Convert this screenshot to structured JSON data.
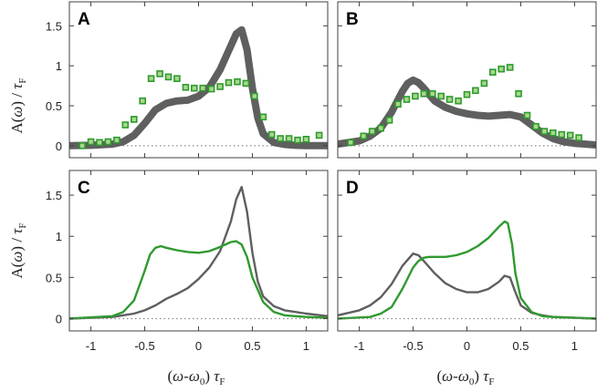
{
  "figure": {
    "ylabel": {
      "main": "A(",
      "omega": "ω",
      "close": ") / ",
      "tau": "τ",
      "sub": "F"
    },
    "xlabel": {
      "open": "(",
      "w1": "ω",
      "dash": "-",
      "w0": "ω",
      "sub0": "0",
      "close": ") ",
      "tau": "τ",
      "subF": "F"
    },
    "colors": {
      "gray": "#5f5f5f",
      "green": "#2f9a2f",
      "marker_fill": "#a6d98a",
      "frame": "#404040",
      "zero_line": "#8a8a8a"
    }
  },
  "chart_data": [
    {
      "panel": "A",
      "type": "line",
      "xlim": [
        -1.2,
        1.2
      ],
      "ylim": [
        -0.15,
        1.8
      ],
      "yticks": [
        "0",
        "0.5",
        "1",
        "1.5"
      ],
      "xticks": [],
      "series": [
        {
          "name": "theory band",
          "style": "band",
          "color": "gray",
          "x": [
            -1.2,
            -1.0,
            -0.8,
            -0.7,
            -0.6,
            -0.5,
            -0.4,
            -0.3,
            -0.2,
            -0.1,
            0.0,
            0.1,
            0.2,
            0.3,
            0.35,
            0.4,
            0.45,
            0.5,
            0.55,
            0.6,
            0.7,
            0.8,
            0.9,
            1.0,
            1.2
          ],
          "y": [
            0.0,
            0.005,
            0.02,
            0.05,
            0.13,
            0.28,
            0.45,
            0.53,
            0.56,
            0.57,
            0.62,
            0.73,
            0.95,
            1.25,
            1.4,
            1.45,
            1.2,
            0.72,
            0.35,
            0.15,
            0.04,
            0.015,
            0.005,
            0.0,
            0.0
          ]
        },
        {
          "name": "experiment",
          "style": "markers",
          "color": "green",
          "x": [
            -1.08,
            -1.0,
            -0.92,
            -0.84,
            -0.76,
            -0.68,
            -0.6,
            -0.52,
            -0.44,
            -0.36,
            -0.28,
            -0.2,
            -0.12,
            -0.04,
            0.04,
            0.12,
            0.2,
            0.28,
            0.36,
            0.44,
            0.52,
            0.6,
            0.68,
            0.76,
            0.84,
            0.92,
            1.0,
            1.12
          ],
          "y": [
            0.0,
            0.05,
            0.04,
            0.05,
            0.07,
            0.26,
            0.33,
            0.56,
            0.84,
            0.9,
            0.86,
            0.84,
            0.73,
            0.72,
            0.72,
            0.71,
            0.74,
            0.79,
            0.8,
            0.78,
            0.62,
            0.36,
            0.14,
            0.09,
            0.09,
            0.07,
            0.08,
            0.13
          ]
        }
      ]
    },
    {
      "panel": "B",
      "type": "line",
      "xlim": [
        -1.2,
        1.2
      ],
      "ylim": [
        -0.15,
        1.8
      ],
      "yticks": [],
      "xticks": [],
      "series": [
        {
          "name": "theory band",
          "style": "band",
          "color": "gray",
          "x": [
            -1.2,
            -1.0,
            -0.9,
            -0.8,
            -0.7,
            -0.6,
            -0.55,
            -0.5,
            -0.45,
            -0.4,
            -0.35,
            -0.3,
            -0.2,
            -0.1,
            0.0,
            0.1,
            0.2,
            0.3,
            0.4,
            0.5,
            0.6,
            0.7,
            0.8,
            0.9,
            1.0,
            1.2
          ],
          "y": [
            0.02,
            0.06,
            0.12,
            0.22,
            0.42,
            0.68,
            0.78,
            0.82,
            0.79,
            0.72,
            0.64,
            0.56,
            0.48,
            0.43,
            0.4,
            0.38,
            0.37,
            0.38,
            0.39,
            0.36,
            0.26,
            0.16,
            0.09,
            0.05,
            0.03,
            0.01
          ]
        },
        {
          "name": "experiment",
          "style": "markers",
          "color": "green",
          "x": [
            -1.08,
            -0.96,
            -0.88,
            -0.8,
            -0.72,
            -0.64,
            -0.56,
            -0.48,
            -0.4,
            -0.32,
            -0.24,
            -0.16,
            -0.08,
            0.0,
            0.08,
            0.16,
            0.24,
            0.32,
            0.4,
            0.48,
            0.56,
            0.64,
            0.72,
            0.8,
            0.88,
            0.96,
            1.04
          ],
          "y": [
            0.04,
            0.12,
            0.18,
            0.22,
            0.32,
            0.52,
            0.58,
            0.62,
            0.65,
            0.65,
            0.62,
            0.58,
            0.56,
            0.64,
            0.69,
            0.78,
            0.92,
            0.96,
            0.98,
            0.65,
            0.38,
            0.24,
            0.18,
            0.16,
            0.14,
            0.13,
            0.1
          ]
        }
      ]
    },
    {
      "panel": "C",
      "type": "line",
      "xlim": [
        -1.2,
        1.2
      ],
      "ylim": [
        -0.15,
        1.8
      ],
      "yticks": [
        "0",
        "0.5",
        "1",
        "1.5"
      ],
      "xticks": [
        "-1",
        "-0.5",
        "0",
        "0.5",
        "1"
      ],
      "series": [
        {
          "name": "gray curve",
          "style": "line",
          "color": "gray",
          "x": [
            -1.2,
            -0.8,
            -0.6,
            -0.5,
            -0.4,
            -0.3,
            -0.2,
            -0.1,
            0.0,
            0.1,
            0.2,
            0.3,
            0.35,
            0.4,
            0.45,
            0.5,
            0.55,
            0.6,
            0.7,
            0.8,
            0.9,
            1.0,
            1.2
          ],
          "y": [
            0.0,
            0.02,
            0.06,
            0.1,
            0.16,
            0.24,
            0.3,
            0.37,
            0.48,
            0.62,
            0.82,
            1.18,
            1.45,
            1.6,
            1.3,
            0.8,
            0.45,
            0.27,
            0.15,
            0.1,
            0.08,
            0.06,
            0.03
          ]
        },
        {
          "name": "green curve",
          "style": "line",
          "color": "green",
          "x": [
            -1.2,
            -0.8,
            -0.7,
            -0.6,
            -0.5,
            -0.45,
            -0.4,
            -0.35,
            -0.3,
            -0.2,
            -0.1,
            0.0,
            0.1,
            0.2,
            0.3,
            0.35,
            0.4,
            0.45,
            0.5,
            0.6,
            0.7,
            0.8,
            1.0,
            1.2
          ],
          "y": [
            0.0,
            0.03,
            0.08,
            0.22,
            0.58,
            0.78,
            0.86,
            0.88,
            0.86,
            0.83,
            0.81,
            0.8,
            0.82,
            0.87,
            0.93,
            0.94,
            0.9,
            0.75,
            0.5,
            0.2,
            0.08,
            0.04,
            0.02,
            0.01
          ]
        },
        {
          "name": "zero line",
          "style": "dotted",
          "color": "zero_line",
          "x": [
            -1.2,
            1.2
          ],
          "y": [
            0,
            0
          ]
        }
      ]
    },
    {
      "panel": "D",
      "type": "line",
      "xlim": [
        -1.2,
        1.2
      ],
      "ylim": [
        -0.15,
        1.8
      ],
      "yticks": [],
      "xticks": [
        "-1",
        "-0.5",
        "0",
        "0.5",
        "1"
      ],
      "series": [
        {
          "name": "gray curve",
          "style": "line",
          "color": "gray",
          "x": [
            -1.2,
            -1.0,
            -0.9,
            -0.8,
            -0.7,
            -0.6,
            -0.5,
            -0.45,
            -0.4,
            -0.3,
            -0.2,
            -0.1,
            0.0,
            0.1,
            0.2,
            0.3,
            0.35,
            0.4,
            0.45,
            0.5,
            0.6,
            0.7,
            0.8,
            1.0,
            1.2
          ],
          "y": [
            0.04,
            0.1,
            0.16,
            0.26,
            0.42,
            0.64,
            0.79,
            0.77,
            0.7,
            0.55,
            0.43,
            0.36,
            0.32,
            0.32,
            0.36,
            0.45,
            0.52,
            0.5,
            0.32,
            0.16,
            0.07,
            0.04,
            0.02,
            0.01,
            0.0
          ]
        },
        {
          "name": "green curve",
          "style": "line",
          "color": "green",
          "x": [
            -1.2,
            -0.9,
            -0.8,
            -0.7,
            -0.6,
            -0.5,
            -0.45,
            -0.4,
            -0.35,
            -0.3,
            -0.2,
            -0.1,
            0.0,
            0.1,
            0.2,
            0.3,
            0.35,
            0.38,
            0.42,
            0.45,
            0.5,
            0.6,
            0.7,
            0.8,
            1.0,
            1.2
          ],
          "y": [
            0.0,
            0.02,
            0.06,
            0.14,
            0.36,
            0.62,
            0.7,
            0.74,
            0.75,
            0.75,
            0.75,
            0.77,
            0.81,
            0.88,
            0.98,
            1.12,
            1.18,
            1.16,
            0.9,
            0.55,
            0.25,
            0.08,
            0.03,
            0.02,
            0.01,
            0.0
          ]
        },
        {
          "name": "zero line",
          "style": "dotted",
          "color": "zero_line",
          "x": [
            -1.2,
            1.2
          ],
          "y": [
            0,
            0
          ]
        }
      ]
    }
  ]
}
